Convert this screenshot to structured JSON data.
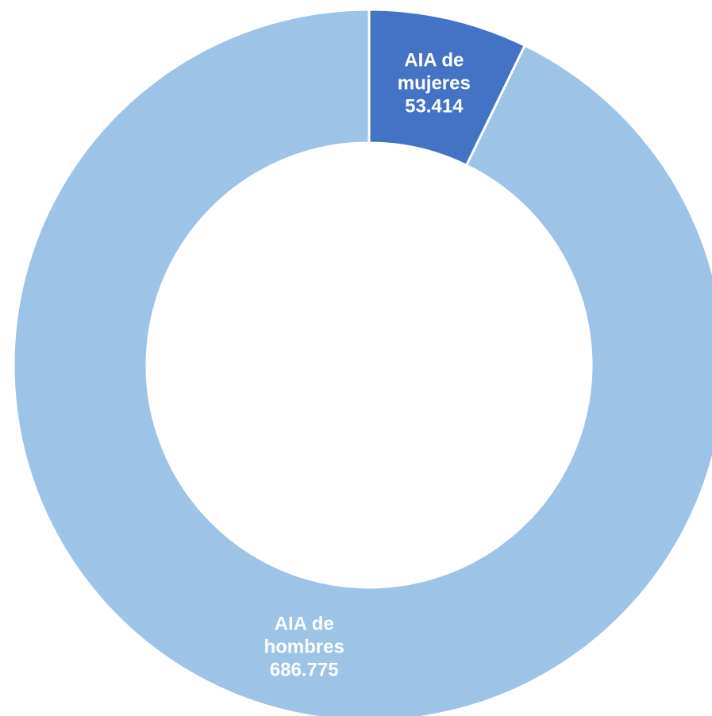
{
  "chart_data": {
    "type": "donut",
    "categories": [
      "AIA de mujeres",
      "AIA de hombres"
    ],
    "values": [
      53414,
      686775
    ],
    "value_labels": [
      "53.414",
      "686.775"
    ],
    "colors": [
      "#4472c4",
      "#9dc3e6"
    ]
  }
}
